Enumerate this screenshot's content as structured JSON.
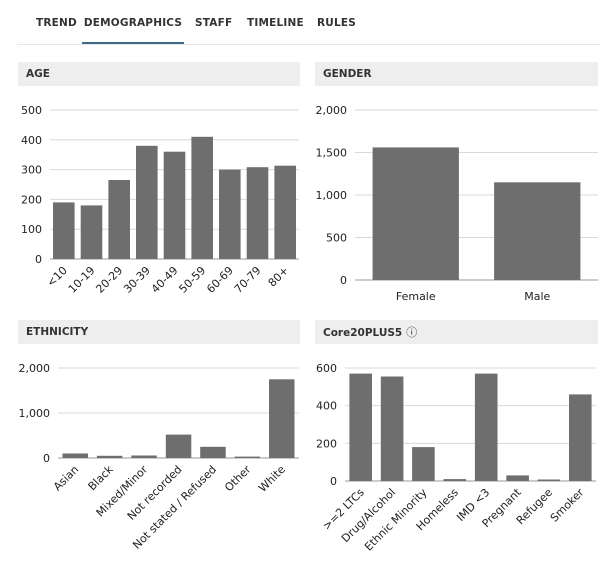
{
  "tabs": [
    {
      "label": "TREND",
      "active": false
    },
    {
      "label": "DEMOGRAPHICS",
      "active": true
    },
    {
      "label": "STAFF",
      "active": false
    },
    {
      "label": "TIMELINE",
      "active": false
    },
    {
      "label": "RULES",
      "active": false
    }
  ],
  "colors": {
    "bar": "#6e6e6e",
    "accent": "#3d6a89",
    "header_bg": "#eeeeee"
  },
  "chart_data": [
    {
      "id": "age",
      "type": "bar",
      "title": "AGE",
      "categories": [
        "<10",
        "10-19",
        "20-29",
        "30-39",
        "40-49",
        "50-59",
        "60-69",
        "70-79",
        "80+"
      ],
      "values": [
        190,
        180,
        265,
        380,
        360,
        410,
        300,
        308,
        313
      ],
      "ylim": [
        0,
        500
      ],
      "yticks": [
        0,
        100,
        200,
        300,
        400,
        500
      ],
      "ytick_labels": [
        "0",
        "100",
        "200",
        "300",
        "400",
        "500"
      ],
      "rotate_labels": true,
      "grid": true,
      "legend": "none"
    },
    {
      "id": "gender",
      "type": "bar",
      "title": "GENDER",
      "categories": [
        "Female",
        "Male"
      ],
      "values": [
        1560,
        1150
      ],
      "ylim": [
        0,
        2000
      ],
      "yticks": [
        0,
        500,
        1000,
        1500,
        2000
      ],
      "ytick_labels": [
        "0",
        "500",
        "1,000",
        "1,500",
        "2,000"
      ],
      "rotate_labels": false,
      "grid": true,
      "legend": "none"
    },
    {
      "id": "ethnicity",
      "type": "bar",
      "title": "ETHNICITY",
      "categories": [
        "Asian",
        "Black",
        "Mixed/Minor",
        "Not recorded",
        "Not stated / Refused",
        "Other",
        "White"
      ],
      "values": [
        100,
        50,
        55,
        520,
        250,
        30,
        1750
      ],
      "ylim": [
        0,
        2000
      ],
      "yticks": [
        0,
        1000,
        2000
      ],
      "ytick_labels": [
        "0",
        "1,000",
        "2,000"
      ],
      "rotate_labels": true,
      "grid": true,
      "legend": "none"
    },
    {
      "id": "core20",
      "type": "bar",
      "title": "Core20PLUS5",
      "title_icon": "info-icon",
      "title_icon_glyph": "ⓘ",
      "categories": [
        ">=2 LTCs",
        "Drug/Alcohol",
        "Ethnic Minority",
        "Homeless",
        "IMD <3",
        "Pregnant",
        "Refugee",
        "Smoker"
      ],
      "values": [
        570,
        555,
        180,
        10,
        570,
        30,
        8,
        460
      ],
      "ylim": [
        0,
        600
      ],
      "yticks": [
        0,
        200,
        400,
        600
      ],
      "ytick_labels": [
        "0",
        "200",
        "400",
        "600"
      ],
      "rotate_labels": true,
      "grid": true,
      "legend": "none"
    }
  ]
}
